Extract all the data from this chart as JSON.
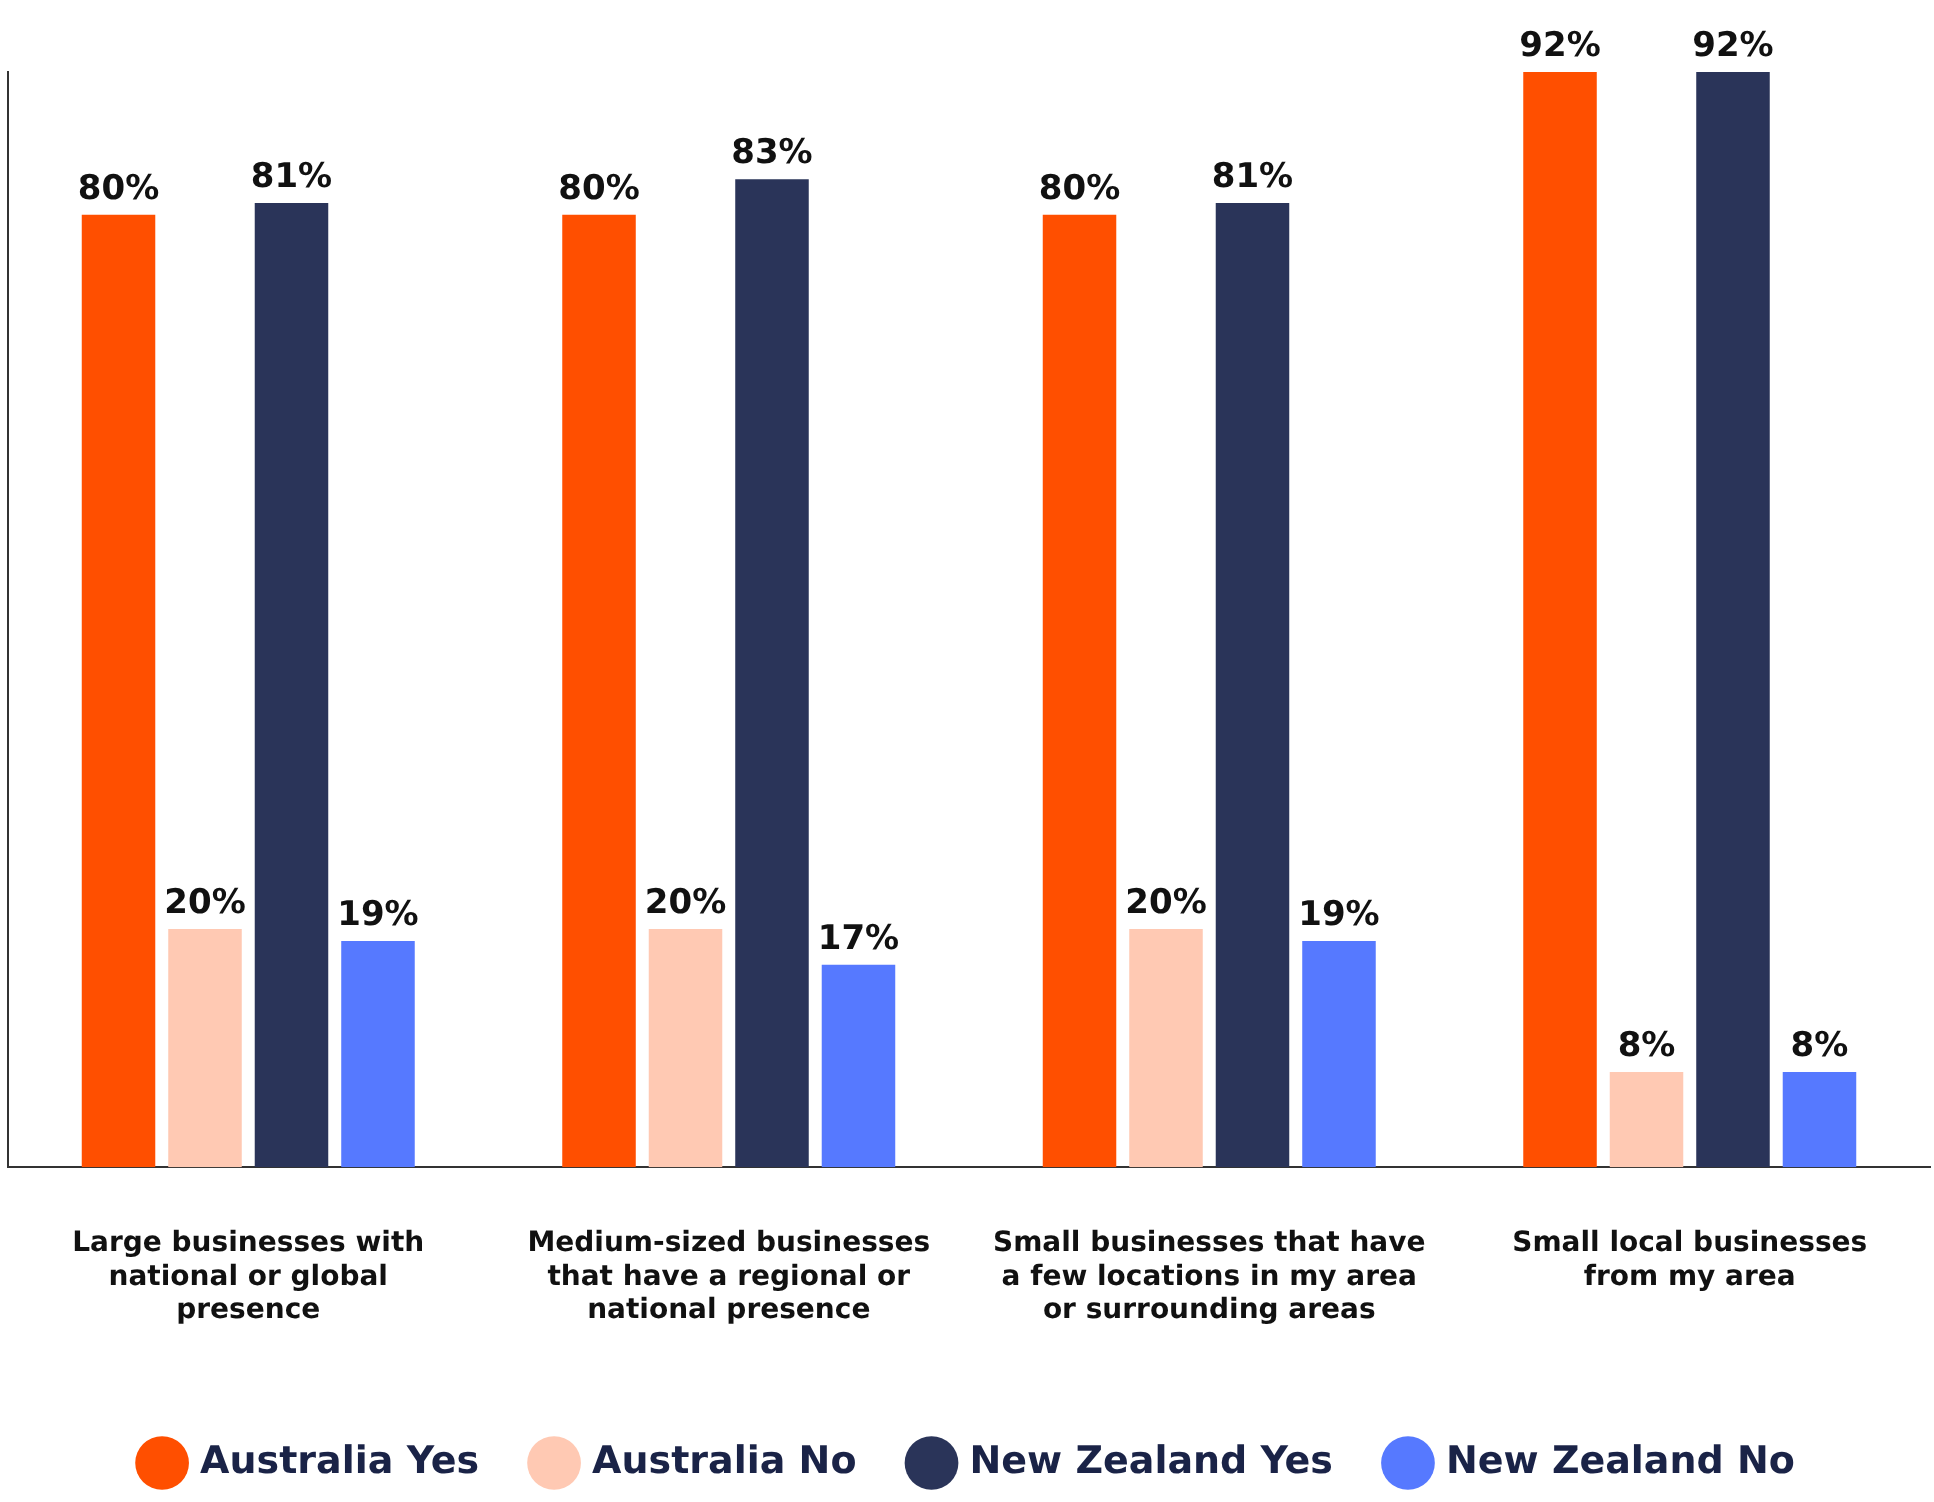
{
  "chart_data": {
    "type": "bar",
    "categories": [
      "Large businesses with national or global presence",
      "Medium-sized businesses that have a regional or national presence",
      "Small businesses that have a few locations in my area or surrounding areas",
      "Small local businesses from my area"
    ],
    "series": [
      {
        "name": "Australia Yes",
        "color": "#ff4f00",
        "values": [
          80,
          80,
          80,
          92
        ],
        "value_labels": [
          "80%",
          "80%",
          "80%",
          "92%"
        ]
      },
      {
        "name": "Australia No",
        "color": "#ffc9b3",
        "values": [
          20,
          20,
          20,
          8
        ],
        "value_labels": [
          "20%",
          "20%",
          "20%",
          "8%"
        ]
      },
      {
        "name": "New Zealand Yes",
        "color": "#2a3459",
        "values": [
          81,
          83,
          81,
          92
        ],
        "value_labels": [
          "81%",
          "83%",
          "81%",
          "92%"
        ]
      },
      {
        "name": "New Zealand No",
        "color": "#5679ff",
        "values": [
          19,
          17,
          19,
          8
        ],
        "value_labels": [
          "19%",
          "17%",
          "19%",
          "8%"
        ]
      }
    ],
    "tick_labels": "x",
    "grid": false,
    "legend": "bottom"
  }
}
